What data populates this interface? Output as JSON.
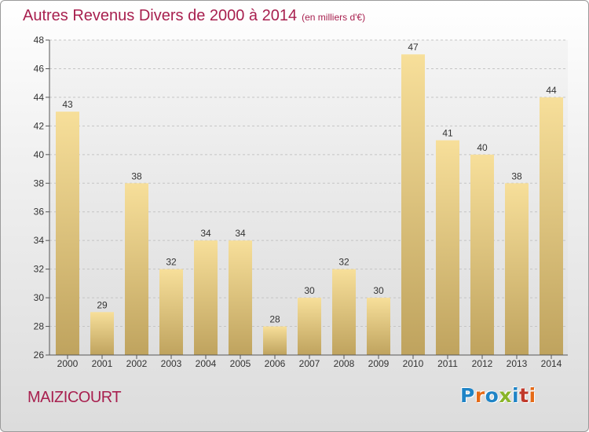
{
  "header": {
    "title": "Autres Revenus Divers de 2000 à 2014",
    "unit": "(en milliers d'€)"
  },
  "footer": {
    "commune": "MAIZICOURT",
    "logo": "Proxiti"
  },
  "colors": {
    "title": "#a8204f",
    "bar_top": "#f7df9a",
    "bar_bottom": "#bfa35e",
    "logo": [
      "#1f84c6",
      "#e56a17",
      "#1f84c6",
      "#8ab529",
      "#1f84c6",
      "#c0392b",
      "#e56a17"
    ]
  },
  "chart_data": {
    "type": "bar",
    "categories": [
      "2000",
      "2001",
      "2002",
      "2003",
      "2004",
      "2005",
      "2006",
      "2007",
      "2008",
      "2009",
      "2010",
      "2011",
      "2012",
      "2013",
      "2014"
    ],
    "values": [
      43,
      29,
      38,
      32,
      34,
      34,
      28,
      30,
      32,
      30,
      47,
      41,
      40,
      38,
      44
    ],
    "ylim": [
      26,
      48
    ],
    "yticks": [
      26,
      28,
      30,
      32,
      34,
      36,
      38,
      40,
      42,
      44,
      46,
      48
    ],
    "grid": true,
    "data_labels": true
  }
}
